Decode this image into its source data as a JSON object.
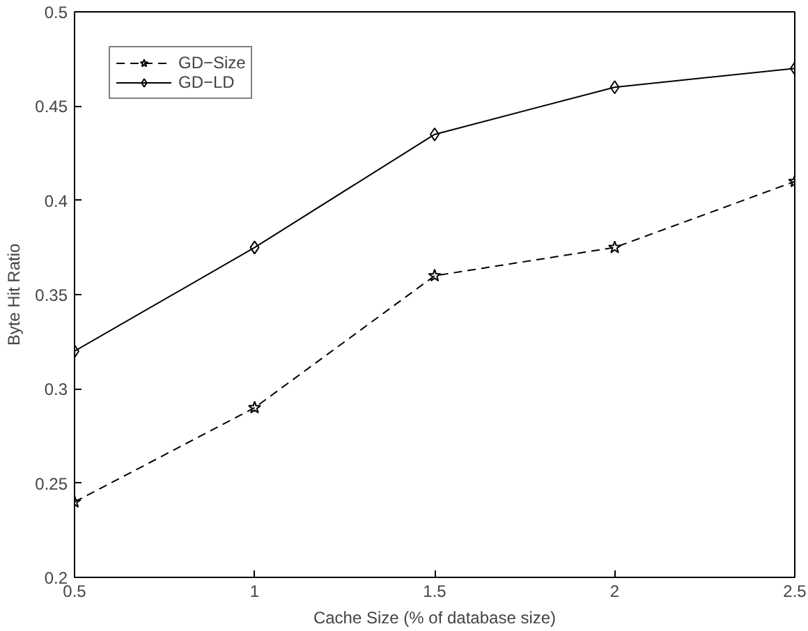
{
  "chart_data": {
    "type": "line",
    "xlabel": "Cache Size (% of database size)",
    "ylabel": "Byte Hit Ratio",
    "x": [
      0.5,
      1,
      1.5,
      2,
      2.5
    ],
    "series": [
      {
        "name": "GD−Size",
        "color": "#000000",
        "marker": "star",
        "line_style": "dashed",
        "values": [
          0.24,
          0.29,
          0.36,
          0.375,
          0.41
        ]
      },
      {
        "name": "GD−LD",
        "color": "#000000",
        "marker": "diamond",
        "line_style": "solid",
        "values": [
          0.32,
          0.375,
          0.435,
          0.46,
          0.47
        ]
      }
    ],
    "xlim": [
      0.5,
      2.5
    ],
    "xticks": [
      0.5,
      1,
      1.5,
      2,
      2.5
    ],
    "ylim": [
      0.2,
      0.5
    ],
    "yticks": [
      0.2,
      0.25,
      0.3,
      0.35,
      0.4,
      0.45,
      0.5
    ],
    "grid": false,
    "legend": "top left"
  }
}
